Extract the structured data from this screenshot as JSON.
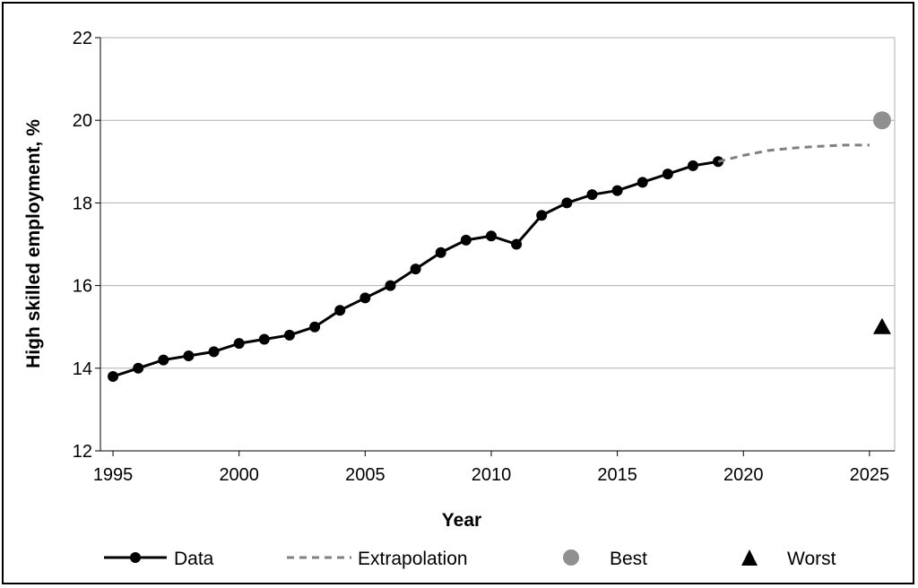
{
  "chart_data": {
    "type": "line",
    "xlabel": "Year",
    "ylabel": "High skilled employment, %",
    "xlim": [
      1994.5,
      2026
    ],
    "ylim": [
      12,
      22
    ],
    "xticks": [
      1995,
      2000,
      2005,
      2010,
      2015,
      2020,
      2025
    ],
    "yticks": [
      12,
      14,
      16,
      18,
      20,
      22
    ],
    "grid": "horizontal",
    "legend": "bottom",
    "series": [
      {
        "name": "Data",
        "style": "solid-marker",
        "color": "#000000",
        "x": [
          1995,
          1996,
          1997,
          1998,
          1999,
          2000,
          2001,
          2002,
          2003,
          2004,
          2005,
          2006,
          2007,
          2008,
          2009,
          2010,
          2011,
          2012,
          2013,
          2014,
          2015,
          2016,
          2017,
          2018,
          2019
        ],
        "y": [
          13.8,
          14.0,
          14.2,
          14.3,
          14.4,
          14.6,
          14.7,
          14.8,
          15.0,
          15.4,
          15.7,
          16.0,
          16.4,
          16.8,
          17.1,
          17.2,
          17.0,
          17.7,
          18.0,
          18.2,
          18.3,
          18.5,
          18.7,
          18.9,
          19.0
        ]
      },
      {
        "name": "Extrapolation",
        "style": "dashed",
        "color": "#808080",
        "x": [
          2019,
          2020,
          2021,
          2022,
          2023,
          2024,
          2025
        ],
        "y": [
          19.0,
          19.15,
          19.27,
          19.33,
          19.37,
          19.4,
          19.4
        ]
      },
      {
        "name": "Best",
        "style": "circle",
        "color": "#909090",
        "x": [
          2025.5
        ],
        "y": [
          20.0
        ]
      },
      {
        "name": "Worst",
        "style": "triangle",
        "color": "#000000",
        "x": [
          2025.5
        ],
        "y": [
          15.0
        ]
      }
    ]
  }
}
